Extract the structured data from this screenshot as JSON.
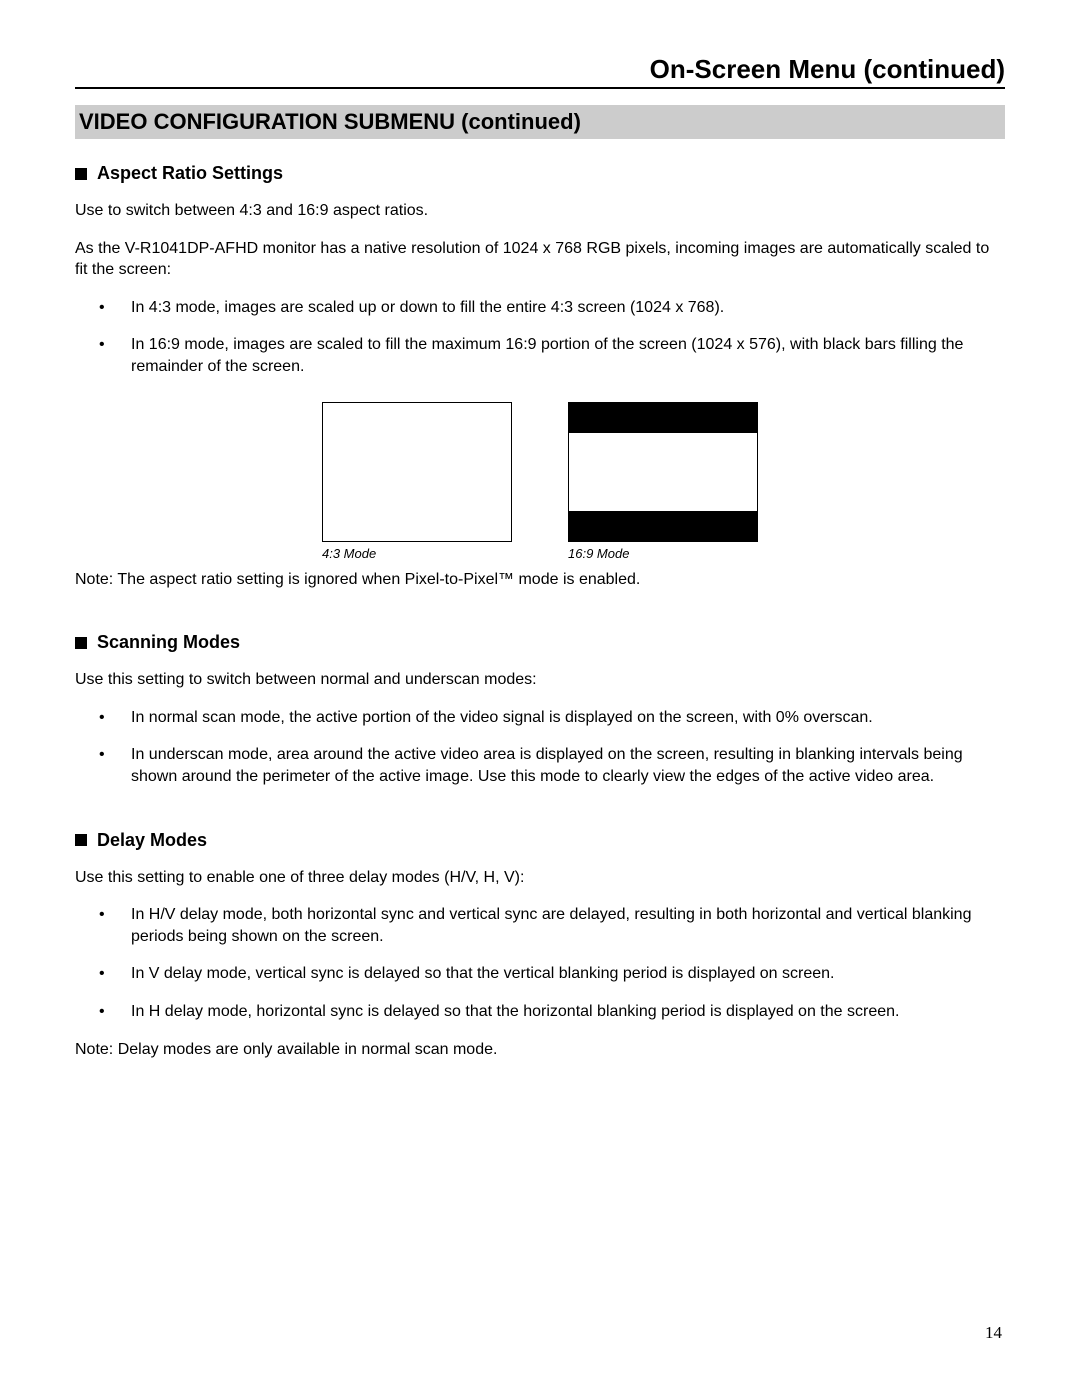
{
  "header": {
    "title": "On-Screen Menu (continued)"
  },
  "section": {
    "title": "VIDEO CONFIGURATION SUBMENU (continued)"
  },
  "aspect": {
    "heading": "Aspect Ratio Settings",
    "p1": "Use to switch between 4:3 and 16:9 aspect ratios.",
    "p2": "As the V-R1041DP-AFHD monitor has a native resolution of 1024 x 768 RGB pixels, incoming images are automatically scaled to fit the screen:",
    "b1": "In 4:3 mode, images are scaled up or down to fill the entire 4:3 screen (1024 x 768).",
    "b2": "In 16:9 mode, images are scaled to fill the maximum 16:9 portion of the screen (1024 x 576), with black bars filling the remainder of the screen.",
    "caption43": "4:3 Mode",
    "caption169": "16:9 Mode",
    "note": "Note: The aspect ratio setting is ignored when Pixel-to-Pixel™ mode is enabled."
  },
  "scanning": {
    "heading": "Scanning Modes",
    "p1": "Use this setting to switch between normal and underscan modes:",
    "b1": "In normal scan mode, the active portion of the video signal is displayed on the screen, with 0% overscan.",
    "b2": "In underscan mode, area around the active video area is displayed on the screen, resulting in blanking intervals being shown around the perimeter of the active image. Use this mode to clearly view the edges of the active video area."
  },
  "delay": {
    "heading": "Delay Modes",
    "p1": "Use this setting to enable one of three delay modes (H/V, H, V):",
    "b1": "In H/V delay mode, both horizontal sync and vertical sync are delayed, resulting in both horizontal and vertical blanking periods being shown on the screen.",
    "b2": "In V delay mode, vertical sync is delayed so that the vertical blanking period is displayed on screen.",
    "b3": "In H delay mode, horizontal sync is delayed so that the horizontal blanking period is displayed on the screen.",
    "note": "Note: Delay modes are only available in normal scan mode."
  },
  "pageNumber": "14"
}
